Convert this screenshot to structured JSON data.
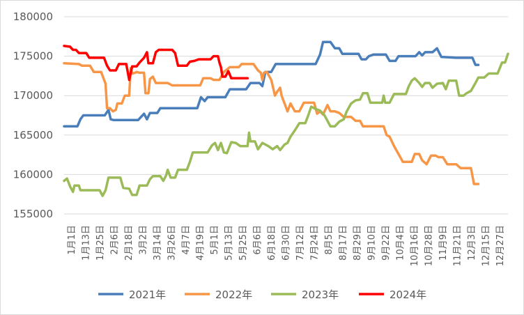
{
  "chart_data": {
    "type": "line",
    "title": "",
    "xlabel": "",
    "ylabel": "",
    "ylim": [
      155000,
      180000
    ],
    "y_ticks": [
      155000,
      160000,
      165000,
      170000,
      175000,
      180000
    ],
    "y_tick_labels": [
      "155000",
      "160000",
      "165000",
      "170000",
      "175000",
      "180000"
    ],
    "grid": "horizontal",
    "legend_position": "bottom",
    "x_tick_labels": [
      "1月1日",
      "1月13日",
      "1月25日",
      "2月6日",
      "2月18日",
      "3月2日",
      "3月14日",
      "3月26日",
      "4月7日",
      "4月19日",
      "5月1日",
      "5月13日",
      "5月25日",
      "6月6日",
      "6月18日",
      "6月30日",
      "7月12日",
      "7月24日",
      "8月5日",
      "8月17日",
      "8月29日",
      "9月10日",
      "9月22日",
      "10月4日",
      "10月16日",
      "10月28日",
      "11月9日",
      "11月21日",
      "12月3日",
      "12月15日",
      "12月27日"
    ],
    "series": [
      {
        "name": "2021年",
        "color": "#4a7ebb",
        "points": [
          [
            0,
            166100
          ],
          [
            18,
            166100
          ],
          [
            22,
            167000
          ],
          [
            26,
            167500
          ],
          [
            55,
            167500
          ],
          [
            60,
            168200
          ],
          [
            63,
            167000
          ],
          [
            67,
            166900
          ],
          [
            100,
            166900
          ],
          [
            104,
            167300
          ],
          [
            108,
            167700
          ],
          [
            112,
            167000
          ],
          [
            116,
            167800
          ],
          [
            126,
            167800
          ],
          [
            130,
            168400
          ],
          [
            180,
            168400
          ],
          [
            185,
            169800
          ],
          [
            190,
            169300
          ],
          [
            194,
            169800
          ],
          [
            218,
            169800
          ],
          [
            224,
            170800
          ],
          [
            246,
            170800
          ],
          [
            252,
            171600
          ],
          [
            264,
            171600
          ],
          [
            268,
            171200
          ],
          [
            272,
            173000
          ],
          [
            280,
            173000
          ],
          [
            286,
            174000
          ],
          [
            320,
            174000
          ],
          [
            340,
            174000
          ],
          [
            346,
            175200
          ],
          [
            350,
            176800
          ],
          [
            360,
            176800
          ],
          [
            366,
            176000
          ],
          [
            372,
            176000
          ],
          [
            376,
            175300
          ],
          [
            398,
            175300
          ],
          [
            402,
            174600
          ],
          [
            408,
            174600
          ],
          [
            412,
            175000
          ],
          [
            418,
            175200
          ],
          [
            435,
            175200
          ],
          [
            440,
            174400
          ],
          [
            448,
            174400
          ],
          [
            452,
            175000
          ],
          [
            475,
            175000
          ],
          [
            480,
            175500
          ],
          [
            484,
            175100
          ],
          [
            488,
            175500
          ],
          [
            498,
            175500
          ],
          [
            504,
            176000
          ],
          [
            510,
            174900
          ],
          [
            530,
            174800
          ],
          [
            552,
            174800
          ],
          [
            556,
            173900
          ],
          [
            560,
            173900
          ]
        ]
      },
      {
        "name": "2022年",
        "color": "#f79646",
        "points": [
          [
            0,
            174100
          ],
          [
            20,
            174000
          ],
          [
            24,
            173800
          ],
          [
            35,
            173800
          ],
          [
            40,
            173000
          ],
          [
            50,
            173000
          ],
          [
            56,
            171500
          ],
          [
            58,
            168400
          ],
          [
            62,
            168400
          ],
          [
            66,
            168000
          ],
          [
            70,
            168200
          ],
          [
            72,
            169000
          ],
          [
            78,
            169000
          ],
          [
            82,
            170000
          ],
          [
            88,
            170000
          ],
          [
            90,
            173500
          ],
          [
            92,
            172800
          ],
          [
            96,
            172900
          ],
          [
            98,
            173000
          ],
          [
            102,
            172900
          ],
          [
            108,
            172900
          ],
          [
            110,
            170300
          ],
          [
            114,
            170300
          ],
          [
            116,
            172100
          ],
          [
            120,
            172400
          ],
          [
            124,
            171600
          ],
          [
            140,
            171600
          ],
          [
            146,
            171300
          ],
          [
            178,
            171300
          ],
          [
            184,
            171300
          ],
          [
            188,
            172200
          ],
          [
            198,
            172200
          ],
          [
            202,
            172000
          ],
          [
            206,
            172000
          ],
          [
            210,
            172000
          ],
          [
            216,
            173000
          ],
          [
            224,
            173600
          ],
          [
            236,
            173600
          ],
          [
            240,
            174000
          ],
          [
            256,
            174000
          ],
          [
            262,
            173200
          ],
          [
            266,
            172900
          ],
          [
            268,
            172000
          ],
          [
            270,
            172900
          ],
          [
            274,
            173000
          ],
          [
            280,
            172000
          ],
          [
            285,
            170000
          ],
          [
            288,
            170500
          ],
          [
            292,
            171000
          ],
          [
            294,
            170000
          ],
          [
            298,
            169000
          ],
          [
            302,
            168000
          ],
          [
            306,
            169000
          ],
          [
            312,
            168000
          ],
          [
            318,
            168000
          ],
          [
            324,
            169100
          ],
          [
            338,
            169100
          ],
          [
            342,
            167700
          ],
          [
            346,
            168000
          ],
          [
            350,
            167600
          ],
          [
            356,
            168800
          ],
          [
            360,
            168000
          ],
          [
            366,
            168000
          ],
          [
            372,
            167800
          ],
          [
            378,
            167300
          ],
          [
            388,
            167300
          ],
          [
            394,
            166800
          ],
          [
            400,
            166800
          ],
          [
            404,
            166100
          ],
          [
            432,
            166100
          ],
          [
            436,
            165000
          ],
          [
            440,
            164800
          ],
          [
            446,
            163600
          ],
          [
            452,
            162600
          ],
          [
            458,
            161600
          ],
          [
            470,
            161600
          ],
          [
            474,
            162600
          ],
          [
            480,
            162600
          ],
          [
            484,
            161800
          ],
          [
            490,
            161300
          ],
          [
            496,
            162400
          ],
          [
            502,
            162400
          ],
          [
            506,
            162200
          ],
          [
            512,
            162200
          ],
          [
            518,
            161300
          ],
          [
            530,
            161300
          ],
          [
            536,
            160800
          ],
          [
            550,
            160800
          ],
          [
            554,
            158800
          ],
          [
            560,
            158800
          ]
        ]
      },
      {
        "name": "2023年",
        "color": "#9bbb59",
        "points": [
          [
            0,
            159200
          ],
          [
            4,
            159500
          ],
          [
            8,
            158500
          ],
          [
            12,
            157800
          ],
          [
            14,
            158600
          ],
          [
            20,
            158600
          ],
          [
            22,
            158000
          ],
          [
            48,
            158000
          ],
          [
            52,
            157300
          ],
          [
            56,
            158000
          ],
          [
            60,
            159600
          ],
          [
            76,
            159600
          ],
          [
            80,
            158300
          ],
          [
            88,
            158200
          ],
          [
            92,
            157400
          ],
          [
            98,
            157400
          ],
          [
            102,
            158600
          ],
          [
            112,
            158600
          ],
          [
            116,
            159400
          ],
          [
            120,
            159800
          ],
          [
            130,
            159800
          ],
          [
            134,
            159200
          ],
          [
            138,
            159900
          ],
          [
            140,
            160600
          ],
          [
            144,
            159600
          ],
          [
            150,
            159600
          ],
          [
            154,
            160600
          ],
          [
            166,
            160600
          ],
          [
            170,
            161600
          ],
          [
            174,
            162800
          ],
          [
            194,
            162800
          ],
          [
            200,
            163700
          ],
          [
            204,
            164000
          ],
          [
            208,
            163100
          ],
          [
            212,
            164000
          ],
          [
            216,
            162800
          ],
          [
            220,
            162700
          ],
          [
            226,
            164100
          ],
          [
            232,
            164000
          ],
          [
            238,
            163600
          ],
          [
            248,
            163600
          ],
          [
            250,
            165300
          ],
          [
            252,
            164200
          ],
          [
            258,
            164200
          ],
          [
            262,
            163200
          ],
          [
            268,
            164000
          ],
          [
            276,
            163600
          ],
          [
            282,
            163200
          ],
          [
            288,
            163600
          ],
          [
            292,
            163100
          ],
          [
            298,
            163800
          ],
          [
            302,
            164000
          ],
          [
            306,
            164800
          ],
          [
            312,
            165600
          ],
          [
            318,
            166500
          ],
          [
            326,
            166500
          ],
          [
            330,
            167500
          ],
          [
            334,
            168600
          ],
          [
            340,
            168300
          ],
          [
            346,
            168100
          ],
          [
            352,
            167500
          ],
          [
            360,
            166100
          ],
          [
            366,
            166100
          ],
          [
            372,
            166700
          ],
          [
            378,
            167000
          ],
          [
            382,
            168000
          ],
          [
            388,
            169000
          ],
          [
            394,
            169400
          ],
          [
            400,
            169500
          ],
          [
            404,
            170300
          ],
          [
            410,
            170300
          ],
          [
            414,
            169100
          ],
          [
            430,
            169100
          ],
          [
            432,
            170000
          ],
          [
            434,
            169100
          ],
          [
            440,
            169100
          ],
          [
            446,
            170200
          ],
          [
            462,
            170200
          ],
          [
            466,
            171200
          ],
          [
            470,
            171900
          ],
          [
            474,
            172200
          ],
          [
            480,
            171600
          ],
          [
            484,
            171100
          ],
          [
            488,
            171600
          ],
          [
            494,
            171600
          ],
          [
            498,
            171000
          ],
          [
            504,
            171500
          ],
          [
            512,
            171600
          ],
          [
            516,
            170800
          ],
          [
            520,
            171900
          ],
          [
            530,
            171900
          ],
          [
            534,
            170000
          ],
          [
            540,
            170000
          ],
          [
            544,
            170300
          ],
          [
            550,
            170600
          ],
          [
            556,
            171600
          ],
          [
            560,
            172300
          ],
          [
            568,
            172300
          ],
          [
            574,
            172800
          ],
          [
            586,
            172800
          ],
          [
            592,
            174200
          ],
          [
            596,
            174200
          ],
          [
            600,
            175300
          ]
        ]
      },
      {
        "name": "2024年",
        "color": "#ff0000",
        "points": [
          [
            0,
            176300
          ],
          [
            8,
            176200
          ],
          [
            12,
            175800
          ],
          [
            16,
            175800
          ],
          [
            20,
            175400
          ],
          [
            30,
            175400
          ],
          [
            34,
            174800
          ],
          [
            54,
            174800
          ],
          [
            58,
            173800
          ],
          [
            62,
            173200
          ],
          [
            70,
            173200
          ],
          [
            74,
            174000
          ],
          [
            84,
            174000
          ],
          [
            88,
            172000
          ],
          [
            92,
            173700
          ],
          [
            98,
            173700
          ],
          [
            102,
            174200
          ],
          [
            108,
            174800
          ],
          [
            112,
            175500
          ],
          [
            114,
            174100
          ],
          [
            120,
            174100
          ],
          [
            124,
            175500
          ],
          [
            128,
            175800
          ],
          [
            146,
            175800
          ],
          [
            150,
            175400
          ],
          [
            154,
            173800
          ],
          [
            166,
            173800
          ],
          [
            170,
            174300
          ],
          [
            176,
            174400
          ],
          [
            182,
            174600
          ],
          [
            198,
            174600
          ],
          [
            202,
            175000
          ],
          [
            208,
            175000
          ],
          [
            210,
            174200
          ],
          [
            212,
            173600
          ],
          [
            214,
            172400
          ],
          [
            218,
            172400
          ],
          [
            222,
            173100
          ],
          [
            226,
            172200
          ],
          [
            248,
            172200
          ]
        ]
      }
    ]
  }
}
